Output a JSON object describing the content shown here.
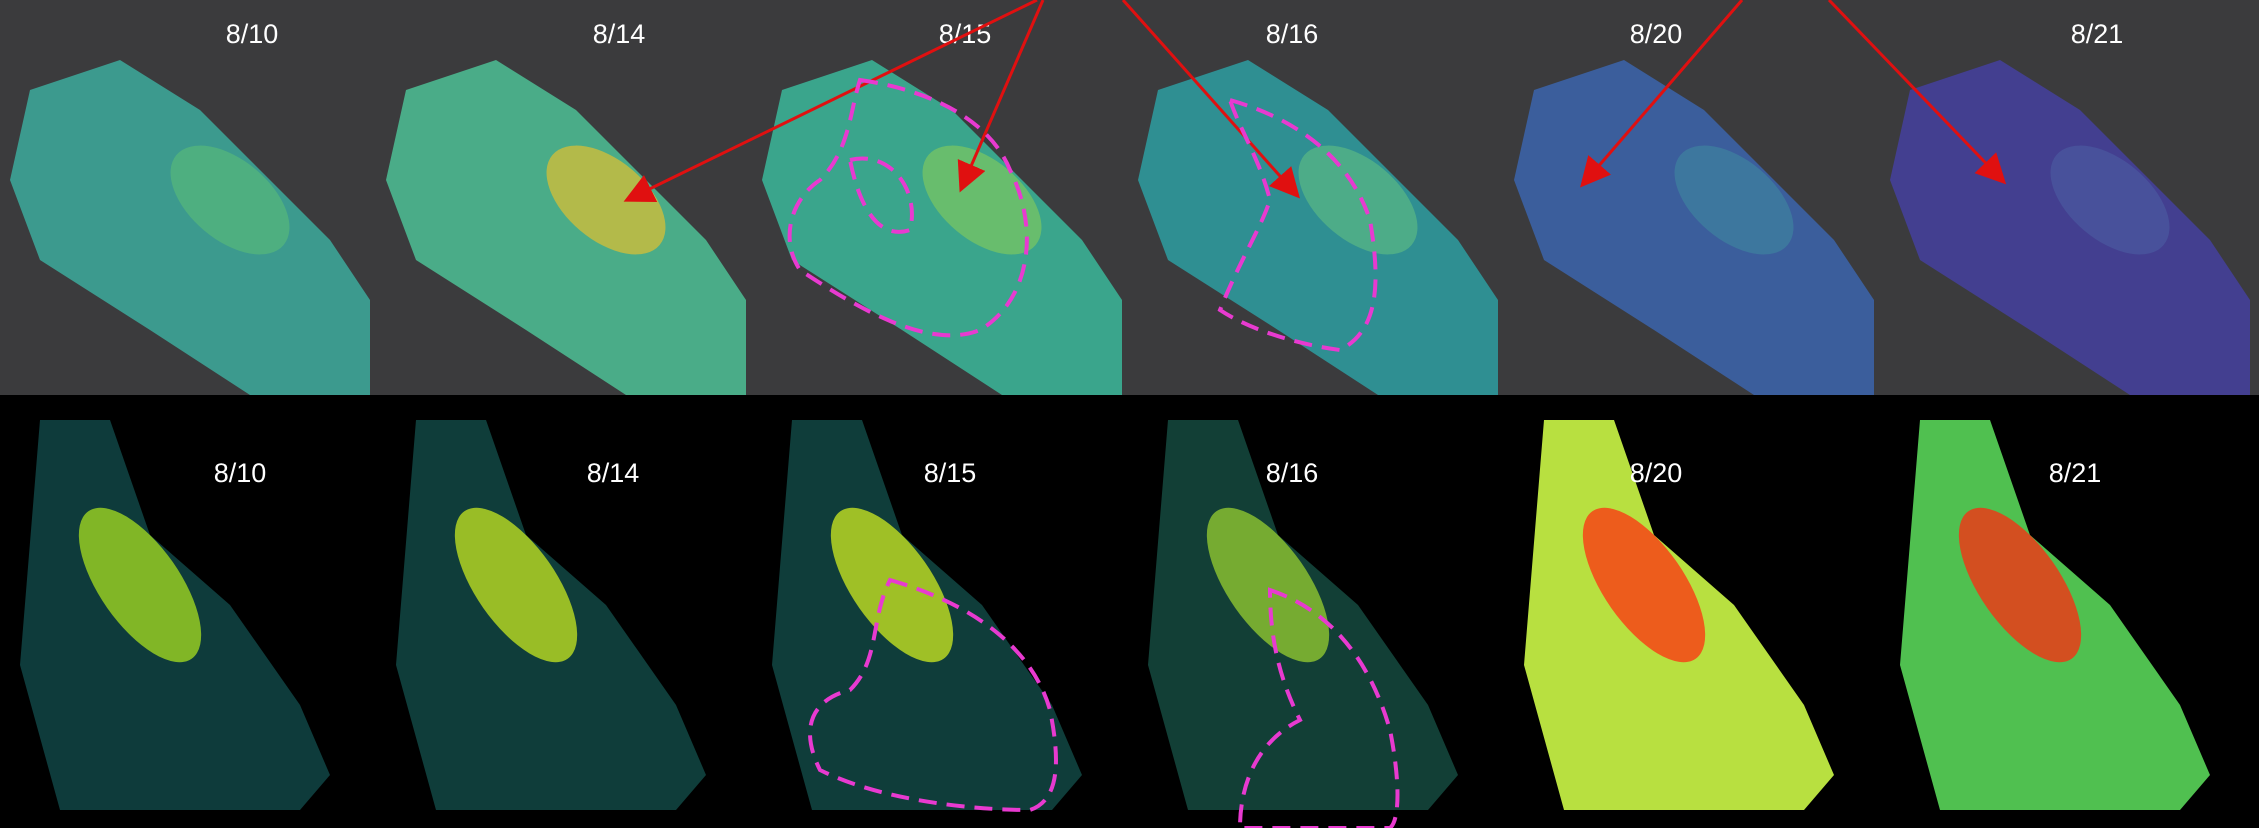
{
  "top_panels": [
    {
      "label": "8/10"
    },
    {
      "label": "8/14"
    },
    {
      "label": "8/15"
    },
    {
      "label": "8/16"
    },
    {
      "label": "8/20"
    },
    {
      "label": "8/21"
    }
  ],
  "bottom_panels": [
    {
      "label": "8/10"
    },
    {
      "label": "8/14"
    },
    {
      "label": "8/15"
    },
    {
      "label": "8/16"
    },
    {
      "label": "8/20"
    },
    {
      "label": "8/21"
    }
  ]
}
